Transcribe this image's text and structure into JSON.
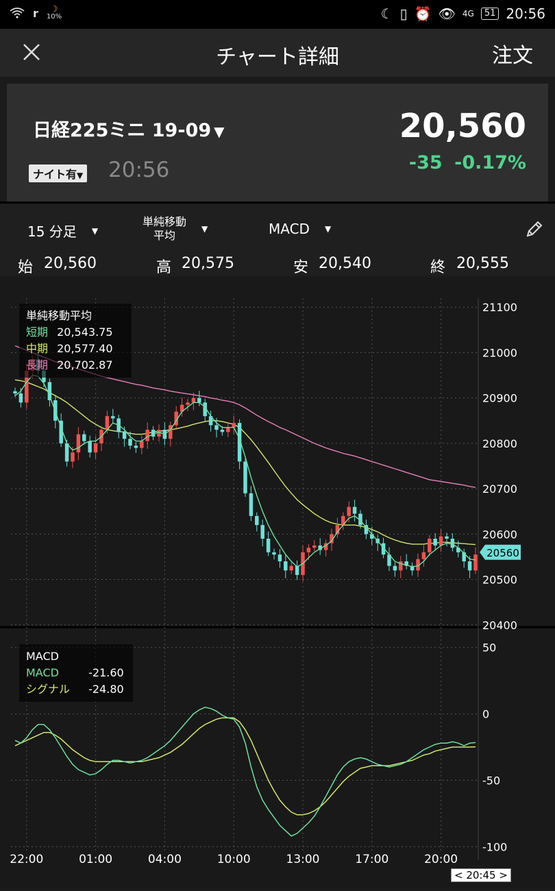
{
  "statusbar": {
    "battery_small_pct": "10%",
    "battery": "51",
    "time": "20:56",
    "network": "4G"
  },
  "nav": {
    "title": "チャート詳細",
    "order": "注文"
  },
  "summary": {
    "symbol": "日経225ミニ 19-09",
    "night_label": "ナイト有",
    "time": "20:56",
    "price": "20,560",
    "change": "-35",
    "change_pct": "-0.17%"
  },
  "toolbar": {
    "interval": "15 分足",
    "indicator_line1": "単純移動",
    "indicator_line2": "平均",
    "oscillator": "MACD"
  },
  "ohlc": {
    "open_label": "始",
    "open": "20,560",
    "high_label": "高",
    "high": "20,575",
    "low_label": "安",
    "low": "20,540",
    "close_label": "終",
    "close": "20,555"
  },
  "ma_legend": {
    "title": "単純移動平均",
    "short_label": "短期",
    "short": "20,543.75",
    "mid_label": "中期",
    "mid": "20,577.40",
    "long_label": "長期",
    "long": "20,702.87"
  },
  "macd_legend": {
    "title": "MACD",
    "macd_label": "MACD",
    "macd": "-21.60",
    "signal_label": "シグナル",
    "signal": "-24.80"
  },
  "colors": {
    "up": "#ef5350",
    "down": "#6ee0d8",
    "short_ma": "#6fe0a0",
    "mid_ma": "#d4e86a",
    "long_ma": "#e67fb8",
    "macd": "#6fe0a0",
    "signal": "#d4e86a",
    "positive": "#4fd38d"
  },
  "current_tag": "20560",
  "time_tag": "< 20:45 >",
  "chart_data": [
    {
      "type": "candlestick",
      "title": "",
      "x_ticks": [
        "22:00",
        "01:00",
        "04:00",
        "10:00",
        "13:00",
        "17:00",
        "20:00"
      ],
      "y_ticks": [
        21100,
        21000,
        20900,
        20800,
        20700,
        20600,
        20500,
        20400
      ],
      "ylim": [
        20380,
        21120
      ],
      "grid": true,
      "closes": [
        20910,
        20890,
        20960,
        20985,
        20960,
        20935,
        20895,
        20850,
        20800,
        20760,
        20780,
        20820,
        20805,
        20780,
        20800,
        20830,
        20860,
        20855,
        20825,
        20810,
        20795,
        20790,
        20805,
        20830,
        20815,
        20830,
        20810,
        20840,
        20870,
        20885,
        20890,
        20900,
        20890,
        20860,
        20840,
        20830,
        20825,
        20835,
        20845,
        20760,
        20690,
        20640,
        20620,
        20590,
        20560,
        20555,
        20540,
        20520,
        20530,
        20510,
        20560,
        20570,
        20575,
        20565,
        20580,
        20600,
        20620,
        20640,
        20660,
        20645,
        20620,
        20600,
        20590,
        20580,
        20555,
        20530,
        20520,
        20540,
        20530,
        20520,
        20545,
        20560,
        20590,
        20575,
        20595,
        20590,
        20570,
        20560,
        20540,
        20520,
        20555
      ],
      "series": [
        {
          "name": "短期",
          "values": [
            20905,
            20915,
            20935,
            20950,
            20948,
            20932,
            20905,
            20870,
            20835,
            20800,
            20785,
            20790,
            20800,
            20805,
            20805,
            20815,
            20830,
            20845,
            20840,
            20830,
            20815,
            20805,
            20805,
            20815,
            20820,
            20825,
            20820,
            20830,
            20850,
            20870,
            20880,
            20890,
            20890,
            20880,
            20860,
            20845,
            20835,
            20835,
            20835,
            20810,
            20770,
            20725,
            20685,
            20650,
            20620,
            20595,
            20575,
            20555,
            20540,
            20528,
            20535,
            20548,
            20560,
            20568,
            20575,
            20585,
            20605,
            20620,
            20635,
            20640,
            20630,
            20615,
            20600,
            20585,
            20570,
            20555,
            20540,
            20535,
            20532,
            20528,
            20530,
            20540,
            20555,
            20565,
            20575,
            20580,
            20578,
            20570,
            20558,
            20545,
            20543
          ]
        },
        {
          "name": "中期",
          "values": [
            20940,
            20938,
            20935,
            20930,
            20925,
            20920,
            20912,
            20905,
            20898,
            20890,
            20880,
            20870,
            20860,
            20850,
            20842,
            20835,
            20830,
            20828,
            20826,
            20825,
            20822,
            20820,
            20820,
            20822,
            20825,
            20827,
            20828,
            20830,
            20832,
            20835,
            20838,
            20842,
            20845,
            20848,
            20850,
            20850,
            20848,
            20845,
            20842,
            20835,
            20822,
            20808,
            20792,
            20775,
            20758,
            20740,
            20722,
            20705,
            20690,
            20676,
            20665,
            20655,
            20645,
            20637,
            20630,
            20625,
            20622,
            20620,
            20620,
            20620,
            20618,
            20615,
            20610,
            20605,
            20598,
            20592,
            20587,
            20583,
            20580,
            20578,
            20578,
            20578,
            20580,
            20580,
            20582,
            20582,
            20581,
            20580,
            20579,
            20578,
            20577
          ]
        },
        {
          "name": "長期",
          "values": [
            21015,
            21010,
            21005,
            21000,
            20995,
            20990,
            20985,
            20980,
            20976,
            20972,
            20968,
            20964,
            20960,
            20956,
            20952,
            20948,
            20945,
            20942,
            20939,
            20936,
            20933,
            20930,
            20928,
            20925,
            20922,
            20920,
            20918,
            20915,
            20913,
            20911,
            20909,
            20907,
            20905,
            20903,
            20900,
            20898,
            20895,
            20893,
            20890,
            20885,
            20878,
            20870,
            20862,
            20855,
            20848,
            20842,
            20835,
            20830,
            20824,
            20818,
            20812,
            20806,
            20800,
            20795,
            20790,
            20786,
            20782,
            20778,
            20775,
            20772,
            20768,
            20764,
            20760,
            20756,
            20752,
            20748,
            20744,
            20740,
            20736,
            20732,
            20728,
            20724,
            20720,
            20718,
            20716,
            20714,
            20712,
            20710,
            20708,
            20705,
            20703
          ]
        }
      ]
    },
    {
      "type": "line",
      "title": "",
      "y_ticks": [
        50,
        0,
        -50,
        -100
      ],
      "ylim": [
        -105,
        55
      ],
      "grid": true,
      "series": [
        {
          "name": "MACD",
          "values": [
            -20,
            -22,
            -18,
            -12,
            -8,
            -8,
            -12,
            -18,
            -25,
            -32,
            -38,
            -42,
            -44,
            -46,
            -45,
            -42,
            -38,
            -35,
            -35,
            -36,
            -37,
            -36,
            -35,
            -33,
            -30,
            -27,
            -24,
            -20,
            -15,
            -10,
            -5,
            0,
            3,
            5,
            4,
            2,
            -1,
            -3,
            -4,
            -10,
            -22,
            -40,
            -55,
            -65,
            -72,
            -78,
            -84,
            -88,
            -92,
            -90,
            -86,
            -82,
            -77,
            -70,
            -62,
            -54,
            -46,
            -40,
            -36,
            -34,
            -33,
            -34,
            -36,
            -38,
            -39,
            -40,
            -39,
            -38,
            -36,
            -33,
            -30,
            -27,
            -25,
            -23,
            -22,
            -22,
            -21,
            -22,
            -24,
            -22,
            -21.6
          ]
        },
        {
          "name": "シグナル",
          "values": [
            -24,
            -22,
            -20,
            -18,
            -16,
            -14,
            -14,
            -16,
            -19,
            -23,
            -27,
            -30,
            -33,
            -35,
            -36,
            -36,
            -36,
            -36,
            -36,
            -36,
            -36,
            -36,
            -36,
            -35,
            -34,
            -33,
            -31,
            -29,
            -26,
            -23,
            -19,
            -15,
            -11,
            -8,
            -6,
            -4,
            -3,
            -3,
            -3,
            -6,
            -12,
            -20,
            -30,
            -40,
            -50,
            -58,
            -65,
            -70,
            -74,
            -76,
            -76,
            -75,
            -73,
            -70,
            -66,
            -61,
            -56,
            -51,
            -47,
            -44,
            -41,
            -40,
            -39,
            -39,
            -39,
            -39,
            -38,
            -37,
            -36,
            -35,
            -33,
            -31,
            -30,
            -28,
            -27,
            -26,
            -25,
            -25,
            -25,
            -25,
            -24.8
          ]
        }
      ]
    }
  ]
}
